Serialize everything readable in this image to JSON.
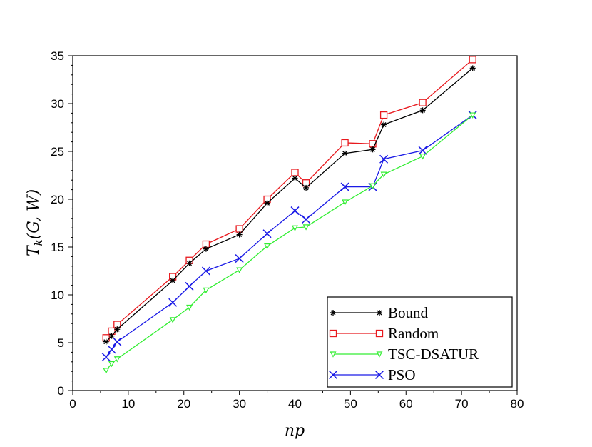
{
  "chart_data": {
    "type": "line",
    "xlabel": "np",
    "ylabel": "T_k(G, W)",
    "ylabel_parts": {
      "base": "T",
      "sub": "k",
      "args": "(G, W)"
    },
    "xlim": [
      0,
      80
    ],
    "ylim": [
      0,
      35
    ],
    "xticks": [
      0,
      10,
      20,
      30,
      40,
      50,
      60,
      70,
      80
    ],
    "yticks": [
      0,
      5,
      10,
      15,
      20,
      25,
      30,
      35
    ],
    "grid": false,
    "legend_position": "bottom-right",
    "series": [
      {
        "name": "Bound",
        "color": "#000000",
        "marker": "asterisk",
        "x": [
          6,
          7,
          8,
          18,
          21,
          24,
          30,
          35,
          40,
          42,
          49,
          54,
          56,
          63,
          72
        ],
        "y": [
          5.1,
          5.7,
          6.4,
          11.5,
          13.3,
          14.8,
          16.3,
          19.6,
          22.2,
          21.2,
          24.8,
          25.2,
          27.8,
          29.3,
          33.7
        ]
      },
      {
        "name": "Random",
        "color": "#e8191e",
        "marker": "square",
        "x": [
          6,
          7,
          8,
          18,
          21,
          24,
          30,
          35,
          40,
          42,
          49,
          54,
          56,
          63,
          72
        ],
        "y": [
          5.5,
          6.2,
          6.9,
          11.9,
          13.6,
          15.3,
          16.9,
          20.0,
          22.8,
          21.7,
          25.9,
          25.8,
          28.8,
          30.1,
          34.6
        ]
      },
      {
        "name": "TSC-DSATUR",
        "color": "#33ee33",
        "marker": "triangle-down",
        "x": [
          6,
          7,
          8,
          18,
          21,
          24,
          30,
          35,
          40,
          42,
          49,
          54,
          56,
          63,
          72
        ],
        "y": [
          2.1,
          2.8,
          3.3,
          7.4,
          8.7,
          10.5,
          12.6,
          15.1,
          17.0,
          17.1,
          19.7,
          21.4,
          22.6,
          24.5,
          28.8
        ]
      },
      {
        "name": "PSO",
        "color": "#1a1ae6",
        "marker": "x",
        "x": [
          6,
          7,
          8,
          18,
          21,
          24,
          30,
          35,
          40,
          42,
          49,
          54,
          56,
          63,
          72
        ],
        "y": [
          3.5,
          4.3,
          5.1,
          9.2,
          10.9,
          12.5,
          13.8,
          16.4,
          18.8,
          17.9,
          21.3,
          21.3,
          24.2,
          25.1,
          28.8
        ]
      }
    ]
  }
}
